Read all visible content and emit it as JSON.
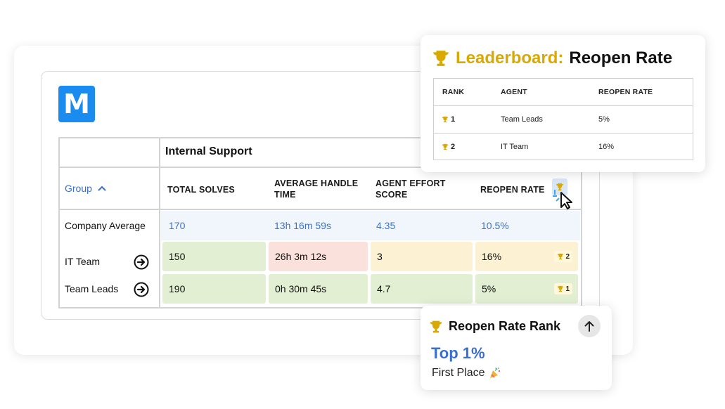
{
  "app": {
    "logo_letter": "M"
  },
  "report": {
    "section_title": "Internal Support",
    "group_header": "Group",
    "columns": [
      "TOTAL SOLVES",
      "AVERAGE HANDLE TIME",
      "AGENT EFFORT SCORE",
      "REOPEN RATE"
    ],
    "average_label": "Company Average",
    "average_values": [
      "170",
      "13h 16m 59s",
      "4.35",
      "10.5%"
    ],
    "rows": [
      {
        "label": "IT Team",
        "values": [
          "150",
          "26h 3m 12s",
          "3",
          "16%"
        ],
        "rank": "2"
      },
      {
        "label": "Team Leads",
        "values": [
          "190",
          "0h 30m 45s",
          "4.7",
          "5%"
        ],
        "rank": "1"
      }
    ],
    "cell_colors": {
      "green": "#e2efd3",
      "red": "#fbe1dc",
      "yellow": "#fdf1d4"
    }
  },
  "leaderboard": {
    "title_prefix": "Leaderboard:",
    "title_metric": "Reopen Rate",
    "headers": [
      "RANK",
      "AGENT",
      "REOPEN RATE"
    ],
    "rows": [
      {
        "rank": "1",
        "agent": "Team Leads",
        "rate": "5%"
      },
      {
        "rank": "2",
        "agent": "IT Team",
        "rate": "16%"
      }
    ]
  },
  "rank_card": {
    "title": "Reopen Rate Rank",
    "value": "Top 1%",
    "subtitle": "First Place"
  },
  "colors": {
    "accent_blue": "#3b6fc7",
    "gold": "#d9a900",
    "logo_blue": "#1a8cf0"
  },
  "icons": [
    "trophy-icon",
    "chevron-up-icon",
    "arrow-right-circle-icon",
    "arrow-up-icon",
    "party-popper-icon",
    "cursor-icon"
  ]
}
